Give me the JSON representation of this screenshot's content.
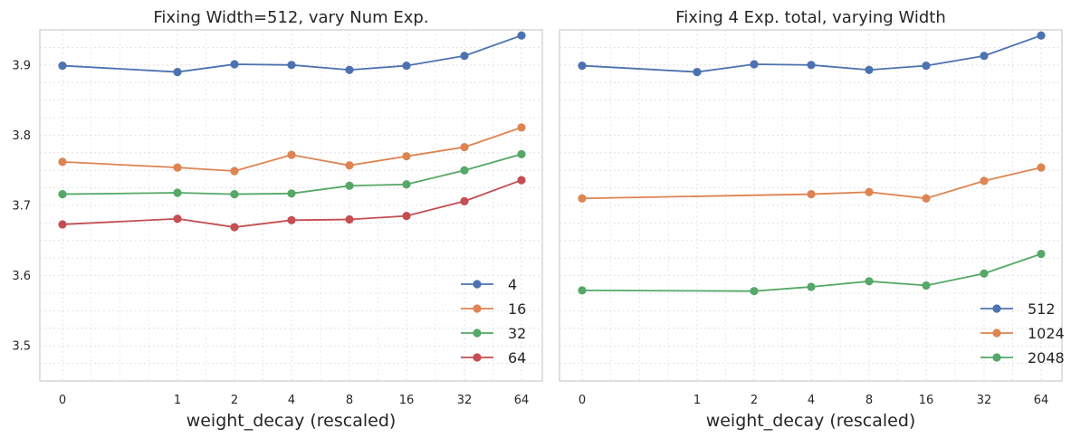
{
  "chart_data": [
    {
      "type": "line",
      "title": "Fixing Width=512, vary Num Exp.",
      "xlabel": "weight_decay (rescaled)",
      "ylabel": "",
      "x_categories": [
        "0",
        "1",
        "2",
        "4",
        "8",
        "16",
        "32",
        "64"
      ],
      "ylim": [
        3.45,
        3.95
      ],
      "yticks": [
        "3.5",
        "3.6",
        "3.7",
        "3.8",
        "3.9"
      ],
      "grid": true,
      "legend_position": "lower-right",
      "series": [
        {
          "name": "4",
          "color": "#4c72b0",
          "x": [
            "0",
            "1",
            "2",
            "4",
            "8",
            "16",
            "32",
            "64"
          ],
          "values": [
            3.899,
            3.89,
            3.901,
            3.9,
            3.893,
            3.899,
            3.913,
            3.942
          ]
        },
        {
          "name": "16",
          "color": "#dd8452",
          "x": [
            "0",
            "1",
            "2",
            "4",
            "8",
            "16",
            "32",
            "64"
          ],
          "values": [
            3.762,
            3.754,
            3.749,
            3.772,
            3.757,
            3.77,
            3.783,
            3.811
          ]
        },
        {
          "name": "32",
          "color": "#55a868",
          "x": [
            "0",
            "1",
            "2",
            "4",
            "8",
            "16",
            "32",
            "64"
          ],
          "values": [
            3.716,
            3.718,
            3.716,
            3.717,
            3.728,
            3.73,
            3.75,
            3.773
          ]
        },
        {
          "name": "64",
          "color": "#c44e52",
          "x": [
            "0",
            "1",
            "2",
            "4",
            "8",
            "16",
            "32",
            "64"
          ],
          "values": [
            3.673,
            3.681,
            3.669,
            3.679,
            3.68,
            3.685,
            3.706,
            3.736
          ]
        }
      ]
    },
    {
      "type": "line",
      "title": "Fixing 4 Exp. total, varying Width",
      "xlabel": "weight_decay (rescaled)",
      "ylabel": "",
      "x_categories": [
        "0",
        "1",
        "2",
        "4",
        "8",
        "16",
        "32",
        "64"
      ],
      "ylim": [
        3.45,
        3.95
      ],
      "grid": true,
      "legend_position": "lower-right",
      "series": [
        {
          "name": "512",
          "color": "#4c72b0",
          "x": [
            "0",
            "1",
            "2",
            "4",
            "8",
            "16",
            "32",
            "64"
          ],
          "values": [
            3.899,
            3.89,
            3.901,
            3.9,
            3.893,
            3.899,
            3.913,
            3.942
          ]
        },
        {
          "name": "1024",
          "color": "#dd8452",
          "x": [
            "0",
            "4",
            "8",
            "16",
            "32",
            "64"
          ],
          "values": [
            3.71,
            3.716,
            3.719,
            3.71,
            3.735,
            3.754
          ]
        },
        {
          "name": "2048",
          "color": "#55a868",
          "x": [
            "0",
            "2",
            "4",
            "8",
            "16",
            "32",
            "64"
          ],
          "values": [
            3.579,
            3.578,
            3.584,
            3.592,
            3.586,
            3.603,
            3.631
          ]
        }
      ]
    }
  ]
}
